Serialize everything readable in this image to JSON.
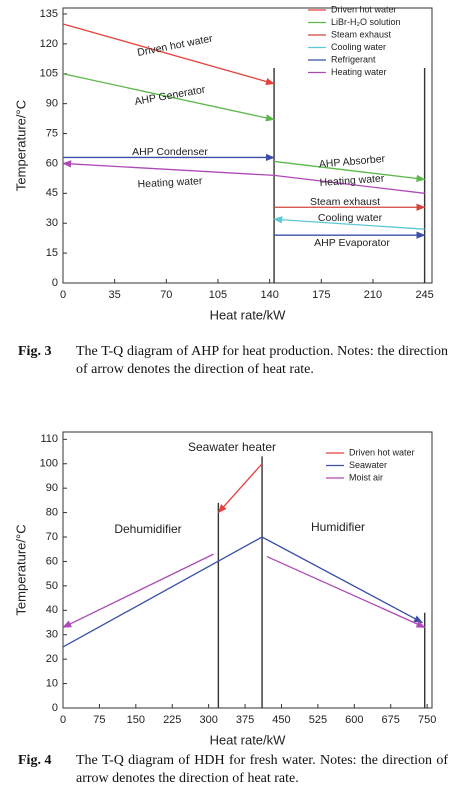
{
  "chart_data": [
    {
      "type": "line",
      "ylabel": "Temperature/°C",
      "xlabel": "Heat rate/kW",
      "xlim": [
        0,
        250
      ],
      "ylim": [
        0,
        138
      ],
      "xticks": [
        0,
        35,
        70,
        105,
        140,
        175,
        210,
        245
      ],
      "yticks": [
        0,
        15,
        30,
        45,
        60,
        75,
        90,
        105,
        120,
        135
      ],
      "vlines": [
        143,
        245
      ],
      "series": [
        {
          "name": "Driven hot water",
          "color": "#e8413c",
          "x": [
            0,
            143
          ],
          "values": [
            130,
            100
          ]
        },
        {
          "name": "LiBr-H₂O solution",
          "color": "#5cb84a",
          "x": [
            0,
            143,
            143,
            143,
            245
          ],
          "values": [
            105,
            82,
            null,
            61,
            52
          ]
        },
        {
          "name": "Steam exhaust",
          "color": "#d0463a",
          "x": [
            143,
            245
          ],
          "values": [
            38,
            38
          ]
        },
        {
          "name": "Cooling water",
          "color": "#5bc8d6",
          "x": [
            245,
            143
          ],
          "values": [
            27,
            32
          ]
        },
        {
          "name": "Refrigerant",
          "color": "#3b4fa8",
          "x": [
            0,
            143,
            143,
            143,
            245
          ],
          "values": [
            63,
            63,
            null,
            24,
            24
          ]
        },
        {
          "name": "Heating water",
          "color": "#b049b8",
          "x": [
            245,
            143,
            0
          ],
          "values": [
            45,
            54,
            60
          ]
        }
      ],
      "annotations": [
        "Driven hot water",
        "AHP Generator",
        "AHP Condenser",
        "Heating water",
        "AHP Absorber",
        "Heating water",
        "Steam exhaust",
        "Cooling water",
        "AHP Evaporator"
      ],
      "caption": {
        "label": "Fig. 3",
        "text": "The T-Q diagram of AHP for heat production. Notes: the direction of arrow denotes the direction of heat rate."
      }
    },
    {
      "type": "line",
      "ylabel": "Temperature/°C",
      "xlabel": "Heat rate/kW",
      "xlim": [
        0,
        760
      ],
      "ylim": [
        0,
        113
      ],
      "xticks": [
        0,
        75,
        150,
        225,
        300,
        375,
        450,
        525,
        600,
        675,
        750
      ],
      "yticks": [
        0,
        10,
        20,
        30,
        40,
        50,
        60,
        70,
        80,
        90,
        100,
        110
      ],
      "vlines": [
        320,
        410,
        745
      ],
      "series": [
        {
          "name": "Driven hot water",
          "color": "#e8413c",
          "x": [
            410,
            320
          ],
          "values": [
            100,
            80
          ]
        },
        {
          "name": "Seawater",
          "color": "#3b4fa8",
          "x": [
            0,
            410,
            740
          ],
          "values": [
            25,
            70,
            35
          ]
        },
        {
          "name": "Moist air",
          "color": "#b049b8",
          "x": [
            310,
            0,
            0,
            420,
            745
          ],
          "values": [
            63,
            33,
            null,
            62,
            33
          ]
        }
      ],
      "annotations": [
        "Seawater heater",
        "Dehumidifier",
        "Humidifier"
      ],
      "caption": {
        "label": "Fig. 4",
        "text": "The T-Q diagram of HDH for fresh water. Notes: the direction of arrow denotes the direction of heat rate."
      }
    }
  ]
}
